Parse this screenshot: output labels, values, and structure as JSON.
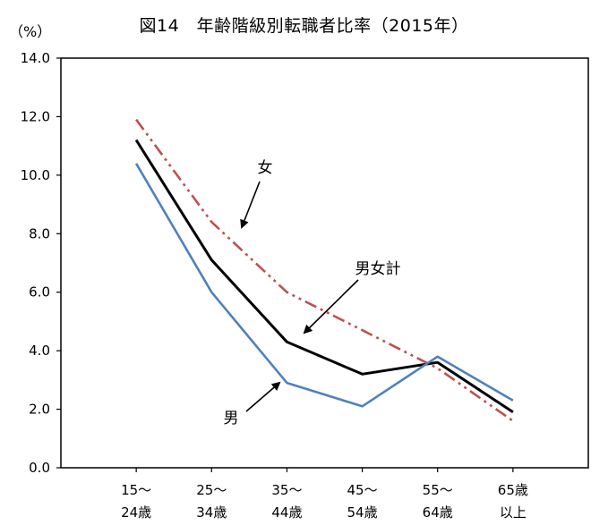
{
  "chart_data": {
    "type": "line",
    "title": "図14　年齢階級別転職者比率（2015年）",
    "y_unit_label": "（%）",
    "xlabel": "",
    "ylabel": "",
    "categories": [
      [
        "15～",
        "24歳"
      ],
      [
        "25～",
        "34歳"
      ],
      [
        "35～",
        "44歳"
      ],
      [
        "45～",
        "54歳"
      ],
      [
        "55～",
        "64歳"
      ],
      [
        "65歳",
        "以上"
      ]
    ],
    "y_ticks": [
      "0.0",
      "2.0",
      "4.0",
      "6.0",
      "8.0",
      "10.0",
      "12.0",
      "14.0"
    ],
    "ylim": [
      0,
      14
    ],
    "grid": false,
    "legend": "none (inline annotations)",
    "series": [
      {
        "name": "男女計",
        "color": "#000000",
        "style": "solid",
        "values": [
          11.2,
          7.1,
          4.3,
          3.2,
          3.6,
          1.9
        ]
      },
      {
        "name": "女",
        "color": "#c0504d",
        "style": "dash-dot-dot",
        "values": [
          11.9,
          8.4,
          6.0,
          4.7,
          3.4,
          1.6
        ]
      },
      {
        "name": "男",
        "color": "#4f81bd",
        "style": "solid",
        "values": [
          10.4,
          6.0,
          2.9,
          2.1,
          3.8,
          2.3
        ]
      }
    ],
    "annotations": [
      {
        "text": "女",
        "series": "女"
      },
      {
        "text": "男女計",
        "series": "男女計"
      },
      {
        "text": "男",
        "series": "男"
      }
    ]
  }
}
